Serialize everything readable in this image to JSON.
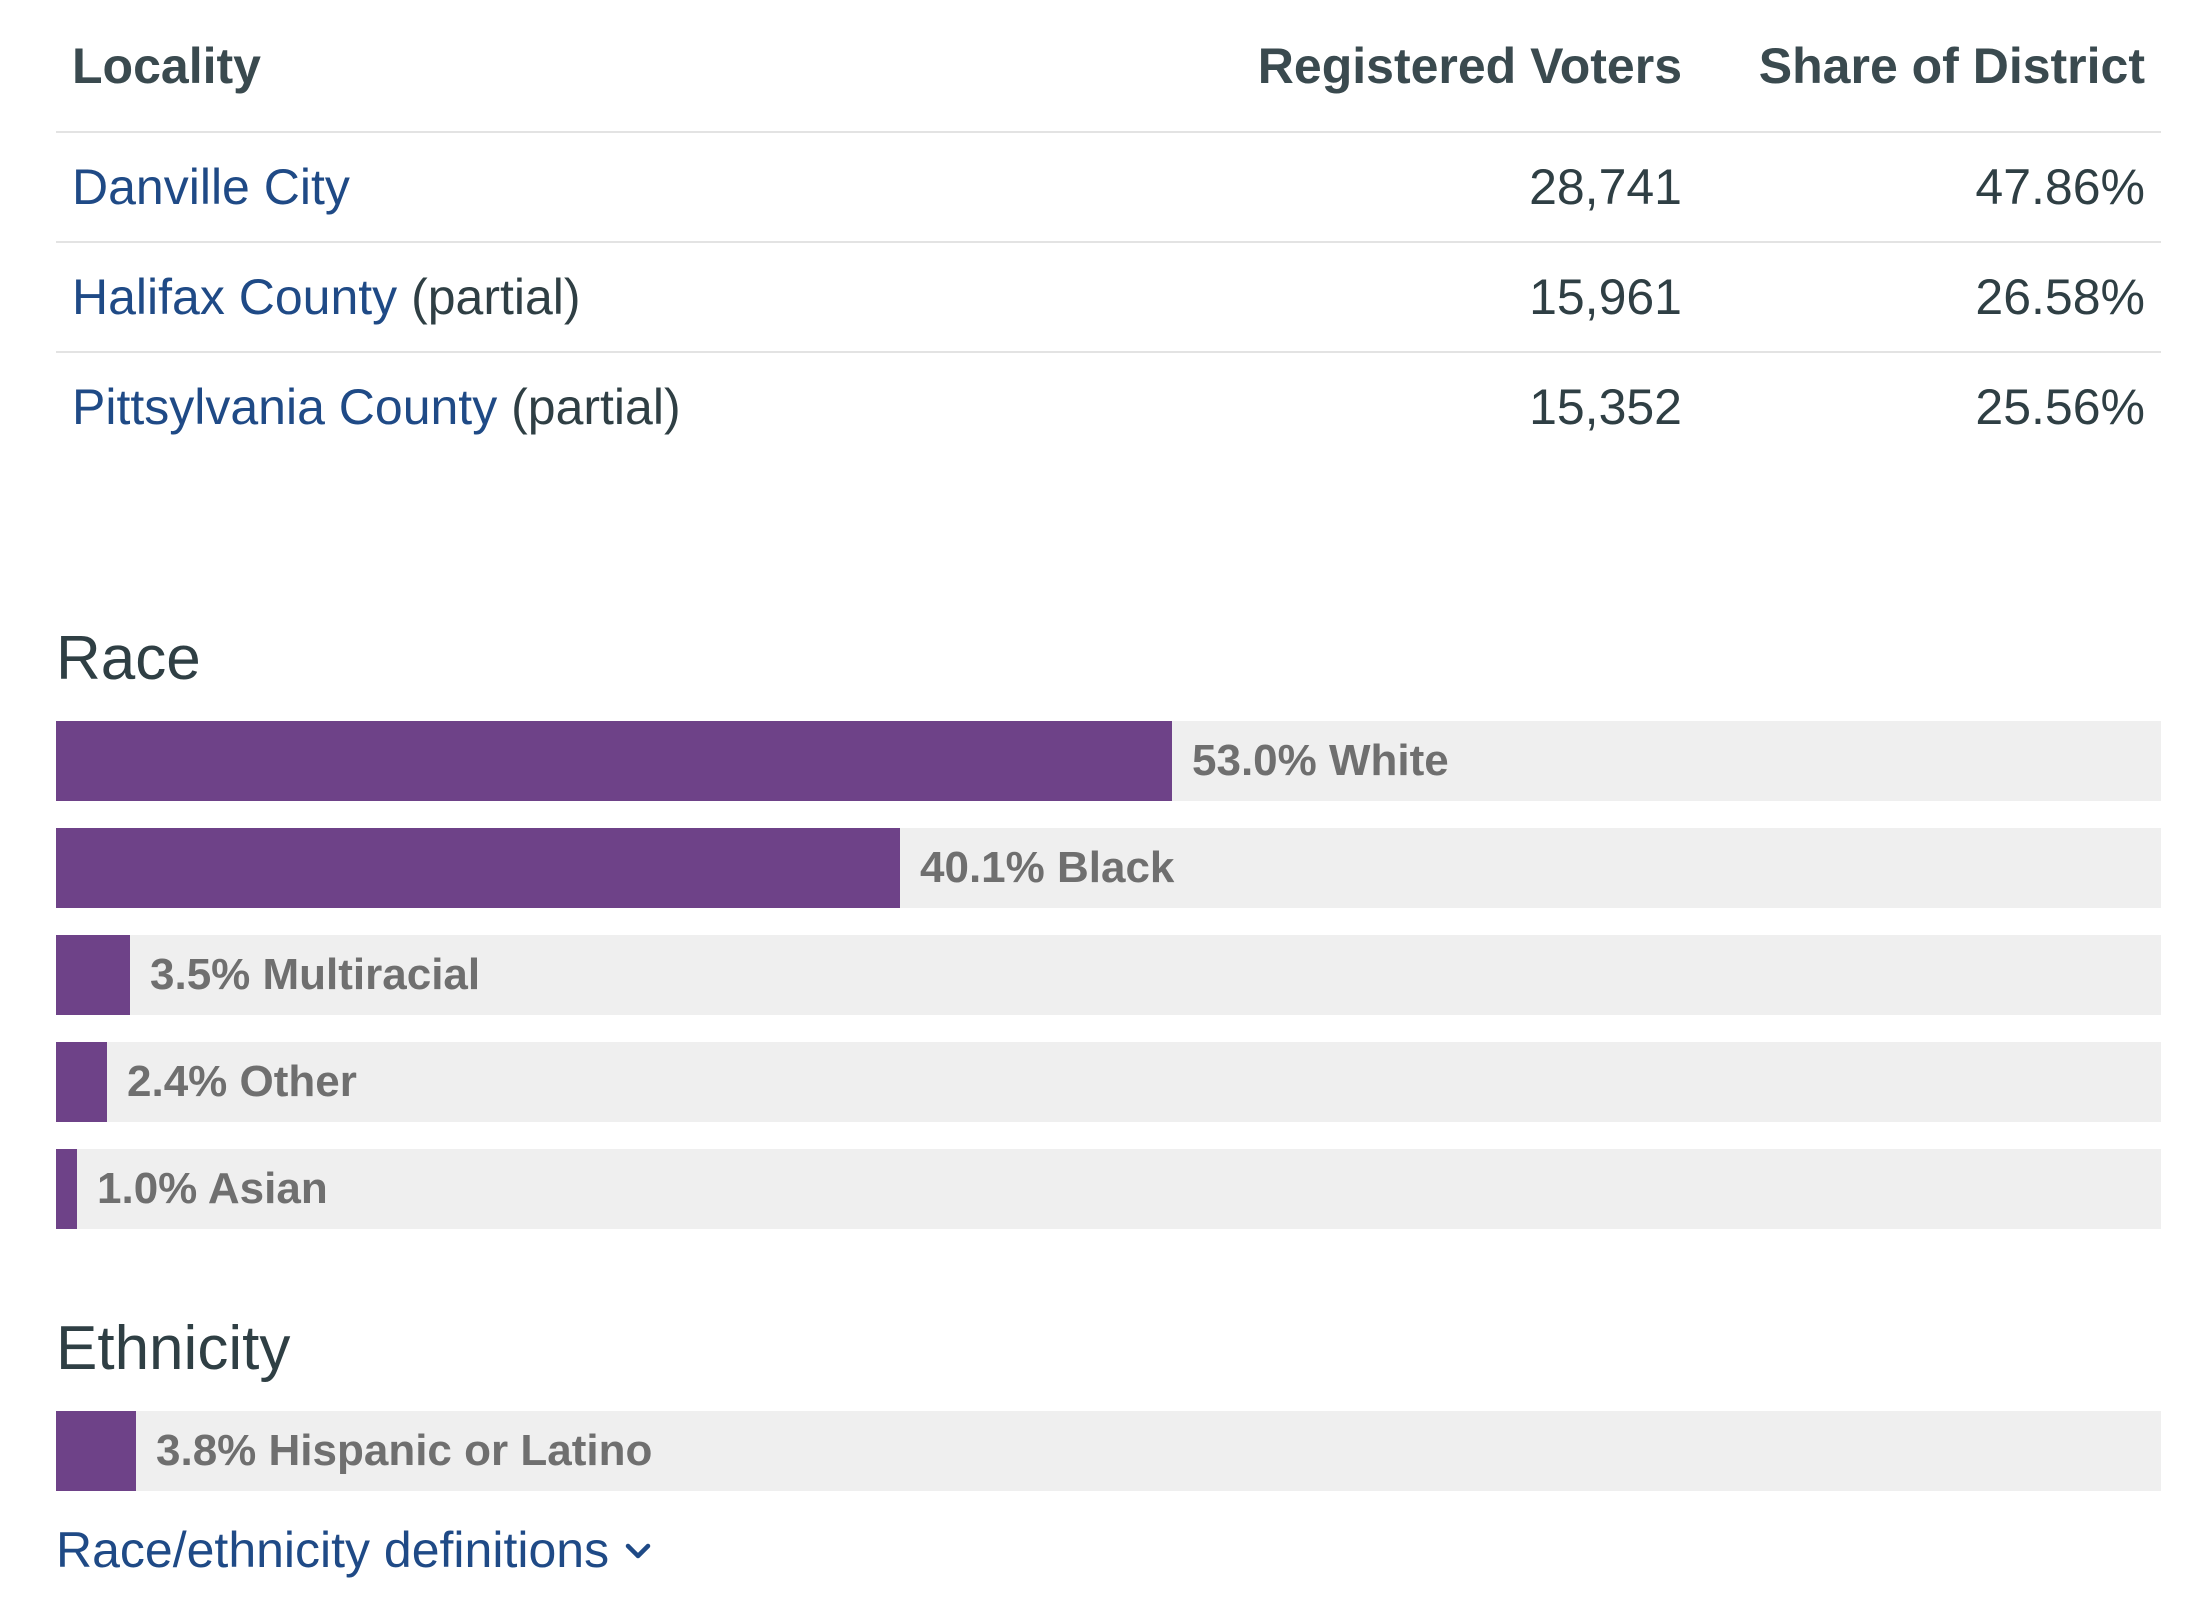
{
  "locality_table": {
    "headers": {
      "locality": "Locality",
      "registered_voters": "Registered Voters",
      "share": "Share of District"
    },
    "rows": [
      {
        "name": "Danville City",
        "suffix": "",
        "voters": "28,741",
        "share": "47.86%"
      },
      {
        "name": "Halifax County",
        "suffix": "(partial)",
        "voters": "15,961",
        "share": "26.58%"
      },
      {
        "name": "Pittsylvania County",
        "suffix": "(partial)",
        "voters": "15,352",
        "share": "25.56%"
      }
    ]
  },
  "race": {
    "title": "Race"
  },
  "ethnicity": {
    "title": "Ethnicity"
  },
  "definitions_link": "Race/ethnicity definitions",
  "colors": {
    "bar_fill": "#6e4288",
    "bar_track": "#efefef",
    "link": "#1f4a86"
  },
  "chart_data": [
    {
      "type": "bar",
      "orientation": "horizontal",
      "title": "Race",
      "categories": [
        "White",
        "Black",
        "Multiracial",
        "Other",
        "Asian"
      ],
      "values": [
        53.0,
        40.1,
        3.5,
        2.4,
        1.0
      ],
      "labels": [
        "53.0% White",
        "40.1% Black",
        "3.5% Multiracial",
        "2.4% Other",
        "1.0% Asian"
      ],
      "xlim": [
        0,
        100
      ],
      "unit": "%"
    },
    {
      "type": "bar",
      "orientation": "horizontal",
      "title": "Ethnicity",
      "categories": [
        "Hispanic or Latino"
      ],
      "values": [
        3.8
      ],
      "labels": [
        "3.8% Hispanic or Latino"
      ],
      "xlim": [
        0,
        100
      ],
      "unit": "%"
    }
  ]
}
